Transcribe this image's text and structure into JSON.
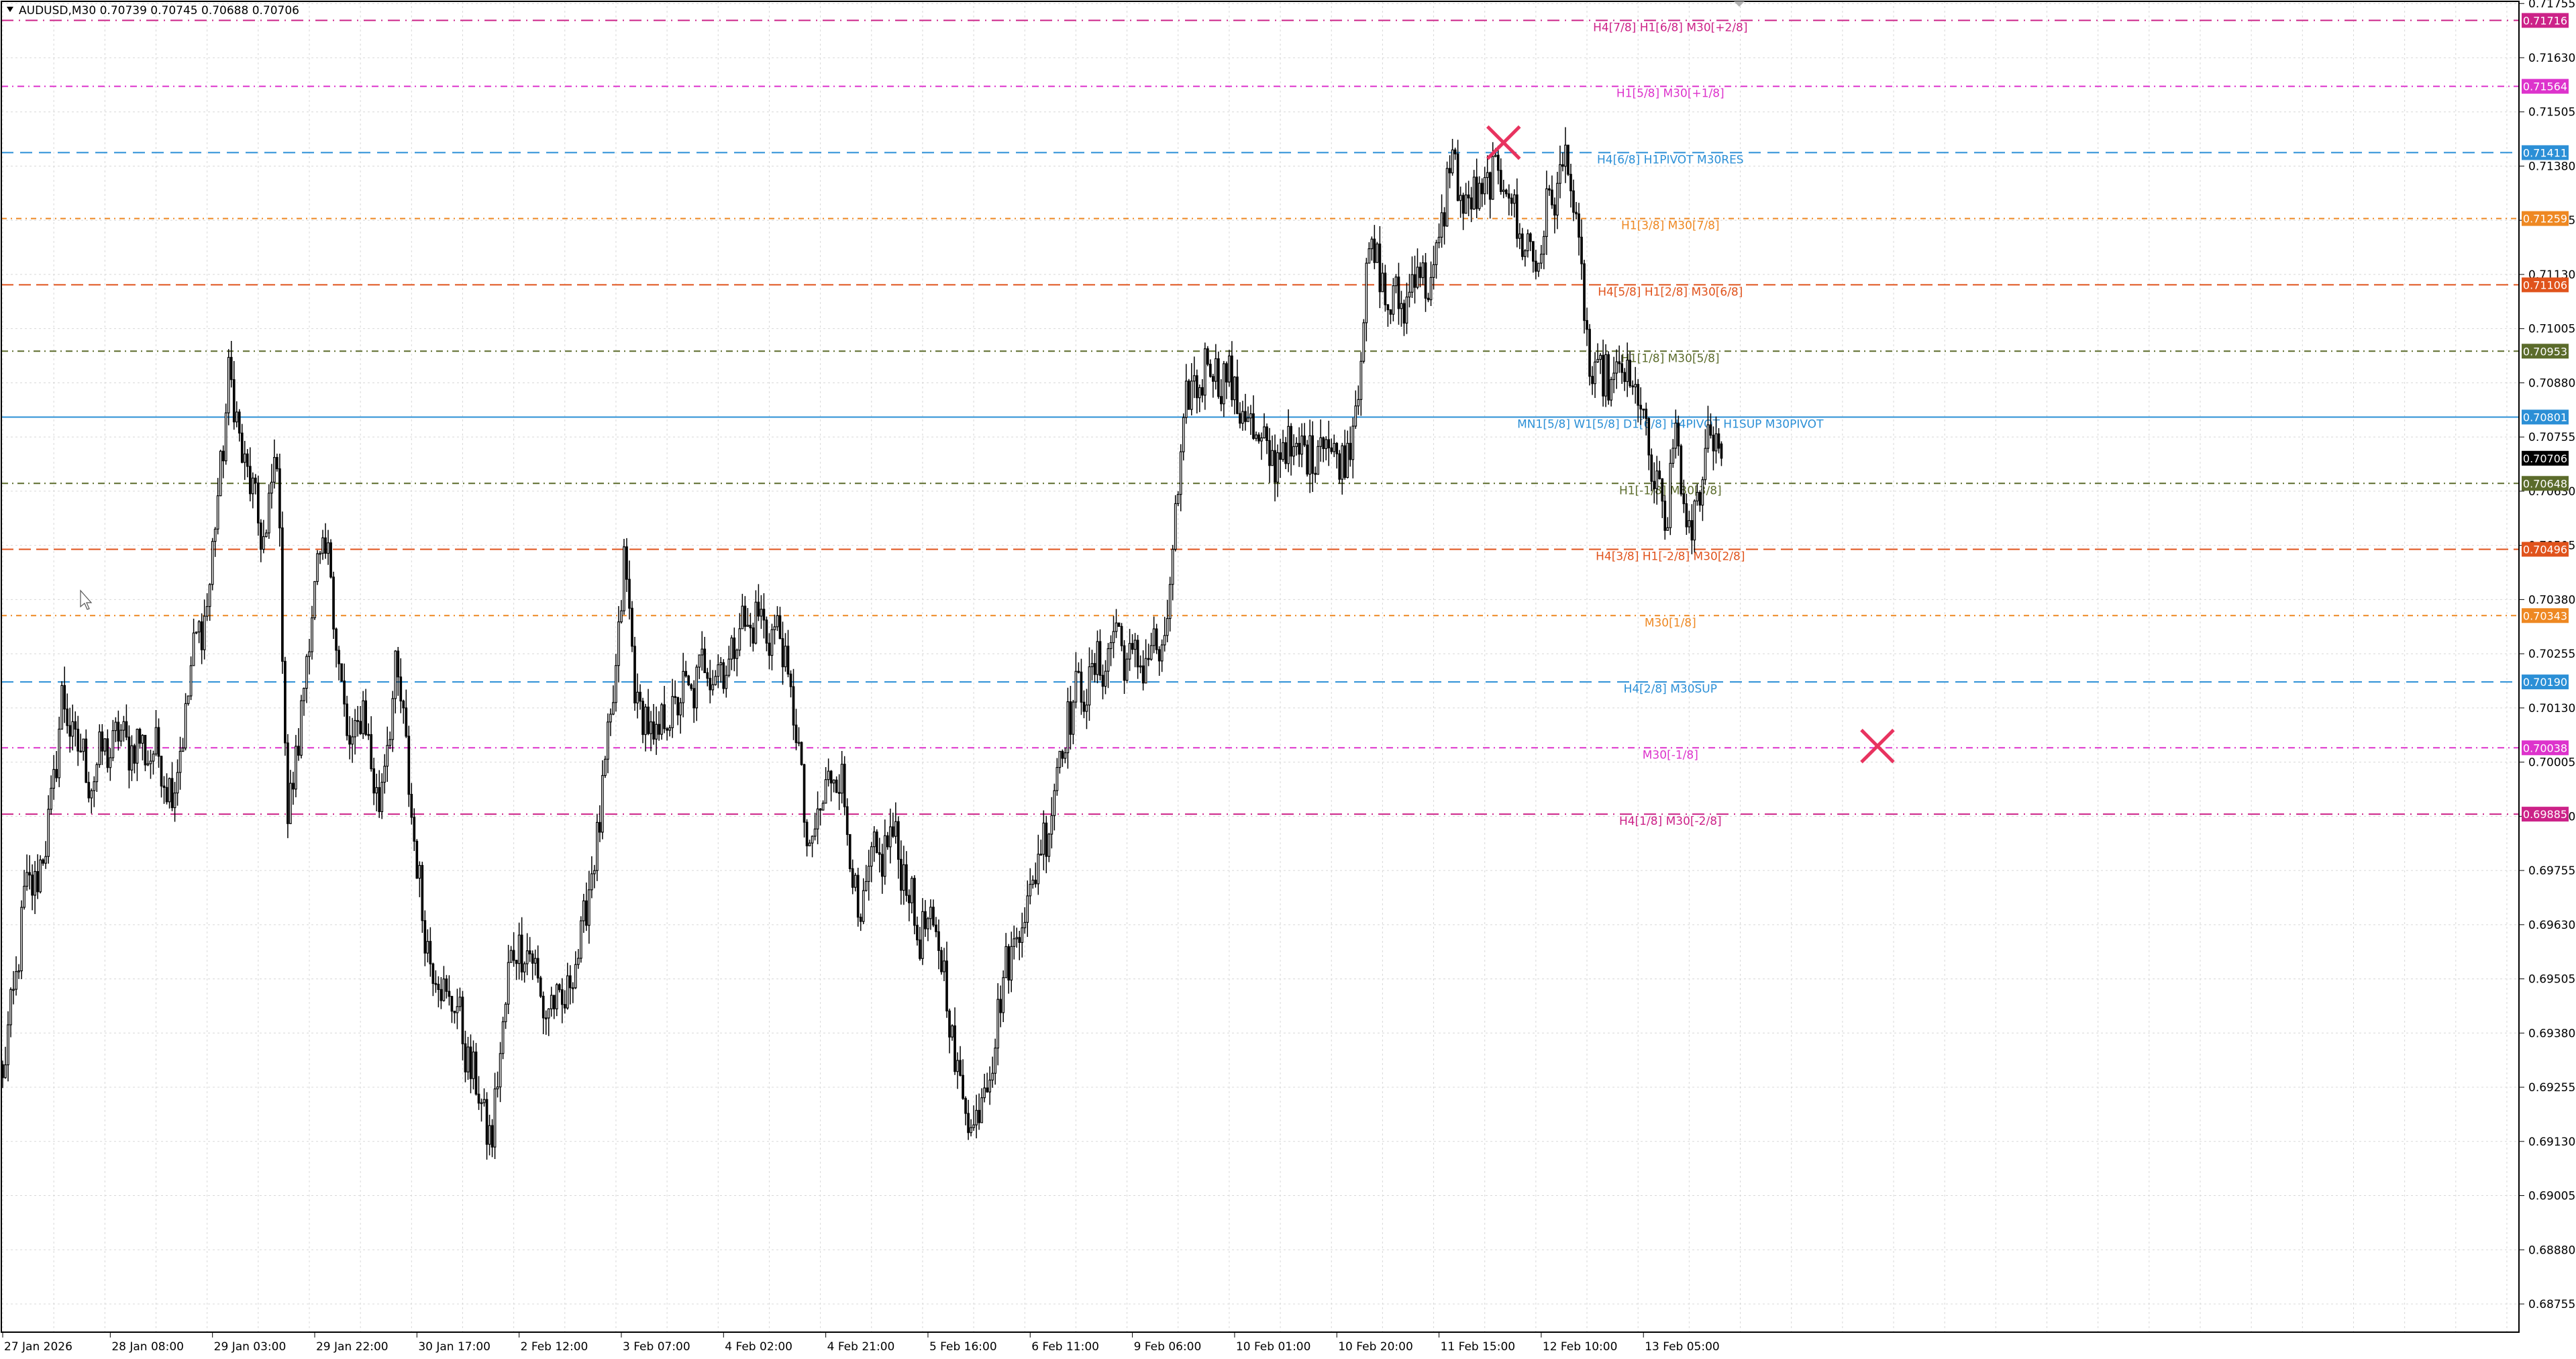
{
  "header": {
    "symbol_info": "AUDUSD,M30  0.70739 0.70745 0.70688 0.70706"
  },
  "chart_data": {
    "type": "candlestick",
    "symbol": "AUDUSD",
    "timeframe": "M30",
    "ohlc_last": {
      "open": 0.70739,
      "high": 0.70745,
      "low": 0.70688,
      "close": 0.70706
    },
    "ylim": [
      0.6869,
      0.7176
    ],
    "grid": true,
    "background_color": "#ffffff",
    "y_ticks": [
      "0.71755",
      "0.71630",
      "0.71505",
      "0.71380",
      "0.71255",
      "0.71130",
      "0.71005",
      "0.70880",
      "0.70755",
      "0.70630",
      "0.70505",
      "0.70380",
      "0.70255",
      "0.70130",
      "0.70005",
      "0.69880",
      "0.69755",
      "0.69630",
      "0.69505",
      "0.69380",
      "0.69255",
      "0.69130",
      "0.69005",
      "0.68880",
      "0.68755"
    ],
    "x_ticks": [
      {
        "label": "27 Jan 2026",
        "bar": 0
      },
      {
        "label": "28 Jan 08:00",
        "bar": 40
      },
      {
        "label": "29 Jan 03:00",
        "bar": 78
      },
      {
        "label": "29 Jan 22:00",
        "bar": 116
      },
      {
        "label": "30 Jan 17:00",
        "bar": 154
      },
      {
        "label": "2 Feb 12:00",
        "bar": 192
      },
      {
        "label": "3 Feb 07:00",
        "bar": 230
      },
      {
        "label": "4 Feb 02:00",
        "bar": 268
      },
      {
        "label": "4 Feb 21:00",
        "bar": 306
      },
      {
        "label": "5 Feb 16:00",
        "bar": 344
      },
      {
        "label": "6 Feb 11:00",
        "bar": 382
      },
      {
        "label": "9 Feb 06:00",
        "bar": 420
      },
      {
        "label": "10 Feb 01:00",
        "bar": 458
      },
      {
        "label": "10 Feb 20:00",
        "bar": 496
      },
      {
        "label": "11 Feb 15:00",
        "bar": 534
      },
      {
        "label": "12 Feb 10:00",
        "bar": 572
      },
      {
        "label": "13 Feb 05:00",
        "bar": 610
      }
    ],
    "total_bar_slots": 936,
    "bars_count": 640,
    "candle_color": "#000000",
    "path_anchors": [
      {
        "bar": 0,
        "price": 0.6926
      },
      {
        "bar": 8,
        "price": 0.6968
      },
      {
        "bar": 16,
        "price": 0.698
      },
      {
        "bar": 22,
        "price": 0.7014
      },
      {
        "bar": 32,
        "price": 0.6997
      },
      {
        "bar": 42,
        "price": 0.7006
      },
      {
        "bar": 56,
        "price": 0.7003
      },
      {
        "bar": 64,
        "price": 0.6994
      },
      {
        "bar": 70,
        "price": 0.7022
      },
      {
        "bar": 77,
        "price": 0.7041
      },
      {
        "bar": 84,
        "price": 0.7089
      },
      {
        "bar": 92,
        "price": 0.7063
      },
      {
        "bar": 98,
        "price": 0.7051
      },
      {
        "bar": 102,
        "price": 0.7074
      },
      {
        "bar": 106,
        "price": 0.6985
      },
      {
        "bar": 112,
        "price": 0.7018
      },
      {
        "bar": 117,
        "price": 0.7047
      },
      {
        "bar": 122,
        "price": 0.7045
      },
      {
        "bar": 128,
        "price": 0.7003
      },
      {
        "bar": 134,
        "price": 0.7012
      },
      {
        "bar": 140,
        "price": 0.699
      },
      {
        "bar": 146,
        "price": 0.7022
      },
      {
        "bar": 150,
        "price": 0.7003
      },
      {
        "bar": 156,
        "price": 0.6964
      },
      {
        "bar": 163,
        "price": 0.6948
      },
      {
        "bar": 168,
        "price": 0.6945
      },
      {
        "bar": 176,
        "price": 0.6925
      },
      {
        "bar": 182,
        "price": 0.6913
      },
      {
        "bar": 188,
        "price": 0.6953
      },
      {
        "bar": 194,
        "price": 0.696
      },
      {
        "bar": 202,
        "price": 0.6943
      },
      {
        "bar": 210,
        "price": 0.6946
      },
      {
        "bar": 218,
        "price": 0.697
      },
      {
        "bar": 226,
        "price": 0.7007
      },
      {
        "bar": 231,
        "price": 0.7046
      },
      {
        "bar": 236,
        "price": 0.7014
      },
      {
        "bar": 242,
        "price": 0.7005
      },
      {
        "bar": 250,
        "price": 0.7014
      },
      {
        "bar": 256,
        "price": 0.7017
      },
      {
        "bar": 262,
        "price": 0.7024
      },
      {
        "bar": 268,
        "price": 0.7021
      },
      {
        "bar": 274,
        "price": 0.7032
      },
      {
        "bar": 282,
        "price": 0.7033
      },
      {
        "bar": 290,
        "price": 0.7028
      },
      {
        "bar": 296,
        "price": 0.7002
      },
      {
        "bar": 300,
        "price": 0.6977
      },
      {
        "bar": 306,
        "price": 0.6996
      },
      {
        "bar": 312,
        "price": 0.6998
      },
      {
        "bar": 318,
        "price": 0.6962
      },
      {
        "bar": 324,
        "price": 0.6978
      },
      {
        "bar": 332,
        "price": 0.6983
      },
      {
        "bar": 340,
        "price": 0.6962
      },
      {
        "bar": 348,
        "price": 0.696
      },
      {
        "bar": 354,
        "price": 0.6932
      },
      {
        "bar": 360,
        "price": 0.6916
      },
      {
        "bar": 366,
        "price": 0.6928
      },
      {
        "bar": 374,
        "price": 0.6956
      },
      {
        "bar": 380,
        "price": 0.6966
      },
      {
        "bar": 388,
        "price": 0.6985
      },
      {
        "bar": 396,
        "price": 0.7012
      },
      {
        "bar": 402,
        "price": 0.7018
      },
      {
        "bar": 408,
        "price": 0.7022
      },
      {
        "bar": 414,
        "price": 0.7031
      },
      {
        "bar": 420,
        "price": 0.7022
      },
      {
        "bar": 426,
        "price": 0.7026
      },
      {
        "bar": 432,
        "price": 0.7026
      },
      {
        "bar": 436,
        "price": 0.7056
      },
      {
        "bar": 440,
        "price": 0.7083
      },
      {
        "bar": 448,
        "price": 0.7093
      },
      {
        "bar": 456,
        "price": 0.7088
      },
      {
        "bar": 464,
        "price": 0.7078
      },
      {
        "bar": 470,
        "price": 0.707
      },
      {
        "bar": 476,
        "price": 0.7073
      },
      {
        "bar": 484,
        "price": 0.7071
      },
      {
        "bar": 492,
        "price": 0.7076
      },
      {
        "bar": 498,
        "price": 0.7068
      },
      {
        "bar": 504,
        "price": 0.7087
      },
      {
        "bar": 508,
        "price": 0.712
      },
      {
        "bar": 514,
        "price": 0.7108
      },
      {
        "bar": 520,
        "price": 0.7105
      },
      {
        "bar": 526,
        "price": 0.7115
      },
      {
        "bar": 532,
        "price": 0.711
      },
      {
        "bar": 538,
        "price": 0.714
      },
      {
        "bar": 544,
        "price": 0.7128
      },
      {
        "bar": 552,
        "price": 0.7133
      },
      {
        "bar": 558,
        "price": 0.7137
      },
      {
        "bar": 564,
        "price": 0.7122
      },
      {
        "bar": 570,
        "price": 0.7116
      },
      {
        "bar": 576,
        "price": 0.7131
      },
      {
        "bar": 582,
        "price": 0.714
      },
      {
        "bar": 586,
        "price": 0.7118
      },
      {
        "bar": 590,
        "price": 0.709
      },
      {
        "bar": 596,
        "price": 0.7088
      },
      {
        "bar": 602,
        "price": 0.709
      },
      {
        "bar": 608,
        "price": 0.7085
      },
      {
        "bar": 614,
        "price": 0.7065
      },
      {
        "bar": 618,
        "price": 0.7054
      },
      {
        "bar": 622,
        "price": 0.7078
      },
      {
        "bar": 626,
        "price": 0.7052
      },
      {
        "bar": 630,
        "price": 0.7058
      },
      {
        "bar": 634,
        "price": 0.7079
      },
      {
        "bar": 639,
        "price": 0.70706
      }
    ],
    "levels": [
      {
        "price": 0.71716,
        "label": "H4[7/8] H1[6/8] M30[+2/8]",
        "price_label": "0.71716",
        "color": "#cc2288",
        "dash": "18,8,2,8"
      },
      {
        "price": 0.71564,
        "label": "H1[5/8] M30[+1/8]",
        "price_label": "0.71564",
        "color": "#dd33cc",
        "dash": "10,6,2,6"
      },
      {
        "price": 0.71411,
        "label": "H4[6/8] H1PIVOT M30RES",
        "price_label": "0.71411",
        "color": "#2b8fd6",
        "dash": "18,10"
      },
      {
        "price": 0.71259,
        "label": "H1[3/8] M30[7/8]",
        "price_label": "0.71259",
        "color": "#ee8822",
        "dash": "8,6,2,6"
      },
      {
        "price": 0.71106,
        "label": "H4[5/8] H1[2/8] M30[6/8]",
        "price_label": "0.71106",
        "color": "#e0531c",
        "dash": "18,8"
      },
      {
        "price": 0.70953,
        "label": "H1[1/8] M30[5/8]",
        "price_label": "0.70953",
        "color": "#5b6b2b",
        "dash": "10,6,2,6"
      },
      {
        "price": 0.70801,
        "label": "MN1[5/8] W1[5/8] D1[6/8] H4PIVOT H1SUP M30PIVOT",
        "price_label": "0.70801",
        "color": "#2b8fd6",
        "dash": ""
      },
      {
        "price": 0.70648,
        "label": "H1[-1/8] M30[3/8]",
        "price_label": "0.70648",
        "color": "#5b6b2b",
        "dash": "10,6,2,6"
      },
      {
        "price": 0.70496,
        "label": "H4[3/8] H1[-2/8] M30[2/8]",
        "price_label": "0.70496",
        "color": "#e0531c",
        "dash": "18,8"
      },
      {
        "price": 0.70343,
        "label": "M30[1/8]",
        "price_label": "0.70343",
        "color": "#ee8822",
        "dash": "8,6,2,6"
      },
      {
        "price": 0.7019,
        "label": "H4[2/8] M30SUP",
        "price_label": "0.70190",
        "color": "#2b8fd6",
        "dash": "18,10"
      },
      {
        "price": 0.70038,
        "label": "M30[-1/8]",
        "price_label": "0.70038",
        "color": "#dd33cc",
        "dash": "10,6,2,6"
      },
      {
        "price": 0.69885,
        "label": "H4[1/8] M30[-2/8]",
        "price_label": "0.69885",
        "color": "#cc2288",
        "dash": "18,8,2,8"
      }
    ],
    "current_price": {
      "price": 0.70706,
      "price_label": "0.70706",
      "color": "#000000"
    },
    "markers": [
      {
        "bar": 558,
        "price": 0.71434,
        "symbol": "cross",
        "color": "#e8335f"
      },
      {
        "bar": 697,
        "price": 0.70042,
        "symbol": "cross",
        "color": "#e8335f"
      }
    ]
  }
}
